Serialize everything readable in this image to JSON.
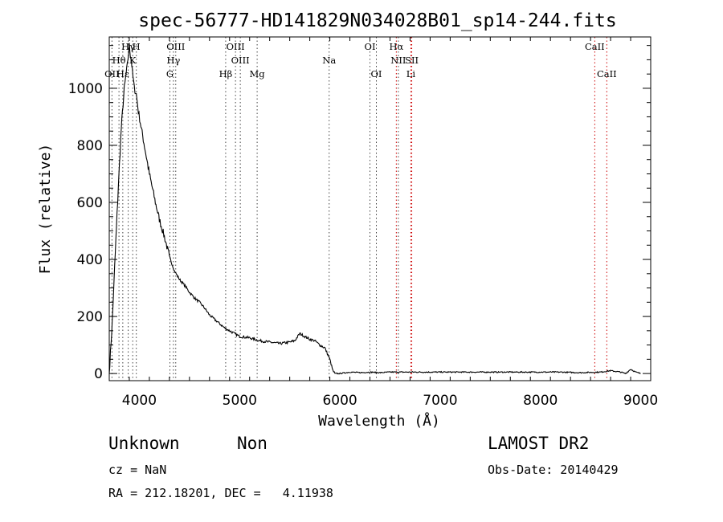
{
  "chart_data": {
    "type": "line",
    "title": "spec-56777-HD141829N034028B01_sp14-244.fits",
    "xlabel": "Wavelength (Å)",
    "ylabel": "Flux (relative)",
    "xlim": [
      3700,
      9100
    ],
    "ylim": [
      -25,
      1180
    ],
    "x_ticks": [
      4000,
      5000,
      6000,
      7000,
      8000,
      9000
    ],
    "y_ticks": [
      0,
      200,
      400,
      600,
      800,
      1000
    ],
    "grid": false,
    "series": [
      {
        "color": "#000000",
        "x": [
          3700,
          3730,
          3760,
          3790,
          3820,
          3850,
          3880,
          3900,
          3910,
          3920,
          3930,
          3950,
          3970,
          3990,
          4010,
          4040,
          4070,
          4100,
          4130,
          4160,
          4200,
          4250,
          4300,
          4350,
          4400,
          4450,
          4500,
          4550,
          4600,
          4650,
          4700,
          4750,
          4800,
          4850,
          4900,
          4950,
          5000,
          5100,
          5200,
          5300,
          5400,
          5500,
          5550,
          5600,
          5650,
          5700,
          5750,
          5800,
          5850,
          5900,
          5930,
          5950,
          6000,
          6100,
          6200,
          6300,
          6400,
          6500,
          6600,
          6700,
          6800,
          7000,
          7200,
          7400,
          7600,
          7800,
          8000,
          8200,
          8400,
          8600,
          8700,
          8800,
          8850,
          8900,
          8950,
          9000
        ],
        "y": [
          0,
          180,
          420,
          650,
          860,
          1000,
          1080,
          1150,
          1120,
          1100,
          1060,
          1000,
          980,
          920,
          880,
          820,
          760,
          700,
          650,
          600,
          540,
          480,
          410,
          360,
          330,
          310,
          285,
          265,
          250,
          230,
          205,
          190,
          175,
          160,
          150,
          140,
          130,
          125,
          115,
          110,
          105,
          110,
          115,
          140,
          130,
          120,
          115,
          100,
          90,
          50,
          10,
          0,
          0,
          5,
          3,
          5,
          3,
          5,
          5,
          5,
          5,
          5,
          5,
          5,
          5,
          5,
          5,
          5,
          3,
          5,
          10,
          5,
          0,
          15,
          5,
          0
        ]
      }
    ],
    "lines": [
      {
        "label": "Hγ",
        "x": 3889,
        "row": 0,
        "color": "#444444"
      },
      {
        "label": "H",
        "x": 3970,
        "row": 0,
        "color": "#444444"
      },
      {
        "label": "OIII",
        "x": 4363,
        "row": 0,
        "color": "#444444"
      },
      {
        "label": "OIII",
        "x": 4959,
        "row": 0,
        "color": "#444444"
      },
      {
        "label": "OI",
        "x": 6300,
        "row": 0,
        "color": "#444444"
      },
      {
        "label": "Hα",
        "x": 6563,
        "row": 0,
        "color": "#cc0000"
      },
      {
        "label": "CaII",
        "x": 8542,
        "row": 0,
        "color": "#cc0000"
      },
      {
        "label": "Hθ",
        "x": 3797,
        "row": 1,
        "color": "#444444"
      },
      {
        "label": "K",
        "x": 3934,
        "row": 1,
        "color": "#444444"
      },
      {
        "label": "Hγ",
        "x": 4340,
        "row": 1,
        "color": "#444444"
      },
      {
        "label": "OIII",
        "x": 5007,
        "row": 1,
        "color": "#444444"
      },
      {
        "label": "NII",
        "x": 6583,
        "row": 1,
        "color": "#444444"
      },
      {
        "label": "SII",
        "x": 6717,
        "row": 1,
        "color": "#cc0000"
      },
      {
        "label": "OII",
        "x": 3727,
        "row": 2,
        "color": "#444444"
      },
      {
        "label": "Hε",
        "x": 3835,
        "row": 2,
        "color": "#444444"
      },
      {
        "label": "G",
        "x": 4305,
        "row": 2,
        "color": "#444444"
      },
      {
        "label": "Hβ",
        "x": 4861,
        "row": 2,
        "color": "#444444"
      },
      {
        "label": "Mg",
        "x": 5175,
        "row": 2,
        "color": "#444444"
      },
      {
        "label": "Na",
        "x": 5893,
        "row": 1,
        "color": "#444444"
      },
      {
        "label": "OI",
        "x": 6364,
        "row": 2,
        "color": "#444444"
      },
      {
        "label": "Li",
        "x": 6708,
        "row": 2,
        "color": "#cc0000"
      },
      {
        "label": "CaII",
        "x": 8662,
        "row": 2,
        "color": "#cc0000"
      }
    ]
  },
  "info": {
    "class_label": "Unknown",
    "subclass_label": "Non",
    "cz_label": "cz = NaN",
    "radec_label": "RA = 212.18201, DEC =   4.11938",
    "survey_label": "LAMOST DR2",
    "obs_date_label": "Obs-Date: 20140429"
  }
}
